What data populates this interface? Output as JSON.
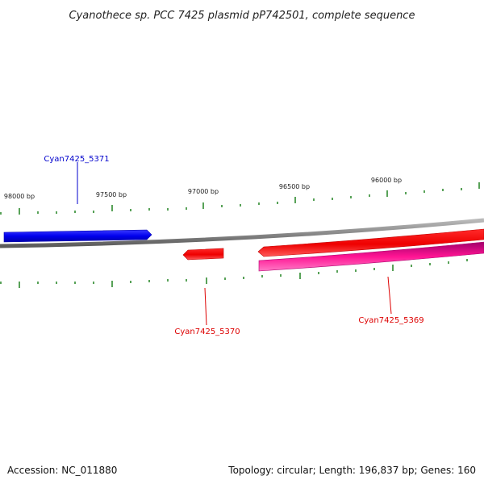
{
  "title": "Cyanothece sp. PCC 7425 plasmid pP742501, complete sequence",
  "footer": {
    "accession": "Accession: NC_011880",
    "summary": "Topology: circular; Length: 196,837 bp; Genes: 160"
  },
  "position_labels": [
    "98000 bp",
    "97500 bp",
    "97000 bp",
    "96500 bp",
    "96000 bp"
  ],
  "genes": [
    {
      "id": "Cyan7425_5371",
      "strand": "forward",
      "color": "#0000e6",
      "label_color": "#0000cc"
    },
    {
      "id": "Cyan7425_5370",
      "strand": "reverse",
      "color": "#ff0000",
      "label_color": "#dd0000"
    },
    {
      "id": "Cyan7425_5369",
      "strand": "reverse",
      "color": "#ff0000",
      "label_color": "#dd0000"
    }
  ],
  "colors": {
    "backbone": "#8c8c8c",
    "tick": "#2e8b2e",
    "feature_pink": "#ff1493"
  }
}
